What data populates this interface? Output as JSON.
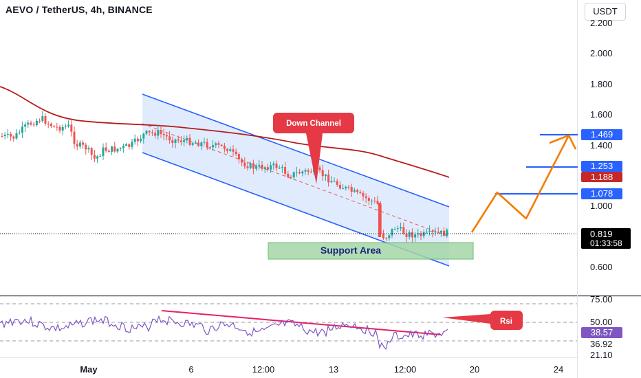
{
  "header": {
    "title": "AEVO / TetherUS, 4h, BINANCE",
    "currency": "USDT"
  },
  "colors": {
    "bull": "#26a69a",
    "bear": "#ef5350",
    "ma": "#b71c1c",
    "channel": "#2962ff",
    "projection": "#f57c00",
    "rsi": "#7e57c2",
    "rsi_trend": "#e91e63",
    "support": "#66bb6a",
    "callout": "#e53945",
    "target_level": "#2962ff",
    "price_tag": "#000000",
    "ma_tag": "#c62828"
  },
  "chart_data": [
    {
      "type": "candlestick",
      "panel": "price",
      "y_ticks": [
        "2.200",
        "2.000",
        "1.800",
        "1.600",
        "1.400",
        "1.000",
        "0.600"
      ],
      "ylim": [
        0.58,
        2.26
      ],
      "x_ticks": [
        "May",
        "6",
        "12:00",
        "13",
        "12:00",
        "20",
        "24"
      ],
      "price_path_approx": [
        [
          "start",
          1.46
        ],
        [
          "May",
          1.4
        ],
        [
          "6",
          1.42
        ],
        [
          "12:00",
          1.28
        ],
        [
          "13",
          1.26
        ],
        [
          "12:00 (day 15)",
          0.8
        ],
        [
          "last",
          0.819
        ]
      ],
      "moving_average": {
        "points_approx": [
          1.78,
          1.56,
          1.54,
          1.5,
          1.48,
          1.41,
          1.29,
          1.19
        ],
        "last": 1.188
      },
      "channel_label": "Down Channel",
      "support_label": "Support Area",
      "support_zone": [
        0.68,
        0.77
      ],
      "projection_path": [
        0.81,
        1.07,
        0.91,
        1.469,
        1.38
      ],
      "price_labels": [
        {
          "value": "1.469",
          "style": "target"
        },
        {
          "value": "1.253",
          "style": "target"
        },
        {
          "value": "1.188",
          "style": "ma"
        },
        {
          "value": "1.078",
          "style": "target"
        },
        {
          "value": "0.819",
          "style": "last"
        },
        {
          "value": "01:33:58",
          "style": "countdown"
        }
      ]
    },
    {
      "type": "line",
      "panel": "rsi",
      "y_ticks": [
        "75.00",
        "50.00",
        "36.92",
        "21.10"
      ],
      "current_value": "38.57",
      "annotation": "Rsi"
    }
  ]
}
